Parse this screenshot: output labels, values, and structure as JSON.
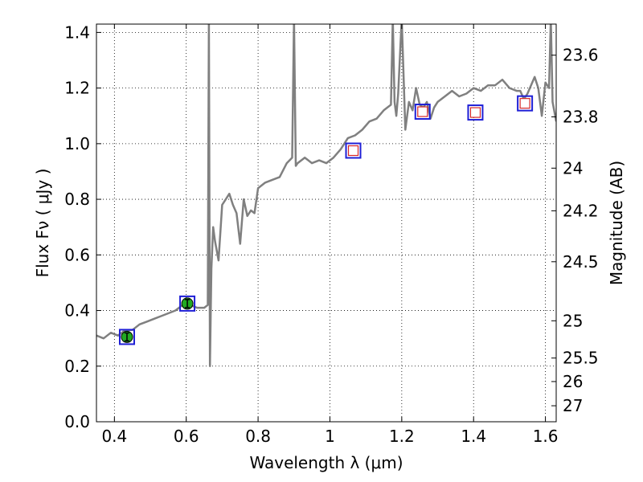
{
  "chart_data": {
    "type": "line",
    "xlabel": "Wavelength  λ (μm)",
    "ylabel": "Flux  Fν  ( μJy )",
    "y2label": "Magnitude (AB)",
    "xlim": [
      0.35,
      1.63
    ],
    "ylim": [
      0.0,
      1.43
    ],
    "grid": true,
    "x_ticks": [
      0.4,
      0.6,
      0.8,
      1.0,
      1.2,
      1.4,
      1.6
    ],
    "x_tick_labels": [
      "0.4",
      "0.6",
      "0.8",
      "1",
      "1.2",
      "1.4",
      "1.6"
    ],
    "y_ticks": [
      0.0,
      0.2,
      0.4,
      0.6,
      0.8,
      1.0,
      1.2,
      1.4
    ],
    "y_tick_labels": [
      "0.0",
      "0.2",
      "0.4",
      "0.6",
      "0.8",
      "1.0",
      "1.2",
      "1.4"
    ],
    "y2_ticks": [
      {
        "label": "23.6",
        "mag": 23.6
      },
      {
        "label": "23.8",
        "mag": 23.8
      },
      {
        "label": "24",
        "mag": 24.0
      },
      {
        "label": "24.2",
        "mag": 24.2
      },
      {
        "label": "24.5",
        "mag": 24.5
      },
      {
        "label": "25",
        "mag": 25.0
      },
      {
        "label": "25.5",
        "mag": 25.5
      },
      {
        "label": "26",
        "mag": 26.0
      },
      {
        "label": "27",
        "mag": 27.0
      }
    ],
    "series": [
      {
        "color": "#808080",
        "x": [
          0.35,
          0.37,
          0.39,
          0.41,
          0.43,
          0.45,
          0.47,
          0.49,
          0.51,
          0.53,
          0.55,
          0.57,
          0.59,
          0.61,
          0.63,
          0.65,
          0.66,
          0.663,
          0.666,
          0.67,
          0.675,
          0.68,
          0.69,
          0.7,
          0.71,
          0.72,
          0.73,
          0.74,
          0.75,
          0.76,
          0.77,
          0.78,
          0.79,
          0.8,
          0.82,
          0.84,
          0.86,
          0.88,
          0.895,
          0.9,
          0.905,
          0.91,
          0.93,
          0.95,
          0.97,
          0.99,
          1.01,
          1.03,
          1.05,
          1.07,
          1.09,
          1.11,
          1.13,
          1.15,
          1.17,
          1.175,
          1.18,
          1.185,
          1.19,
          1.2,
          1.21,
          1.22,
          1.23,
          1.24,
          1.25,
          1.26,
          1.27,
          1.28,
          1.29,
          1.3,
          1.32,
          1.34,
          1.36,
          1.38,
          1.4,
          1.42,
          1.44,
          1.46,
          1.48,
          1.5,
          1.52,
          1.53,
          1.54,
          1.55,
          1.56,
          1.57,
          1.58,
          1.59,
          1.6,
          1.61,
          1.615,
          1.62,
          1.63
        ],
        "y": [
          0.31,
          0.3,
          0.32,
          0.31,
          0.33,
          0.33,
          0.35,
          0.36,
          0.37,
          0.38,
          0.39,
          0.4,
          0.42,
          0.42,
          0.41,
          0.41,
          0.42,
          1.45,
          0.2,
          0.55,
          0.7,
          0.65,
          0.58,
          0.78,
          0.8,
          0.82,
          0.78,
          0.75,
          0.64,
          0.8,
          0.74,
          0.76,
          0.75,
          0.84,
          0.86,
          0.87,
          0.88,
          0.93,
          0.95,
          1.45,
          0.92,
          0.93,
          0.95,
          0.93,
          0.94,
          0.93,
          0.95,
          0.98,
          1.02,
          1.03,
          1.05,
          1.08,
          1.09,
          1.12,
          1.14,
          1.45,
          1.15,
          1.1,
          1.18,
          1.45,
          1.05,
          1.15,
          1.12,
          1.2,
          1.14,
          1.13,
          1.15,
          1.09,
          1.13,
          1.15,
          1.17,
          1.19,
          1.17,
          1.18,
          1.2,
          1.19,
          1.21,
          1.21,
          1.23,
          1.2,
          1.19,
          1.19,
          1.16,
          1.18,
          1.21,
          1.24,
          1.2,
          1.1,
          1.22,
          1.2,
          1.45,
          1.15,
          1.08
        ]
      },
      {
        "marker": "open-square",
        "color": "#d62728",
        "edge_color": "#1f1fd6",
        "x": [
          1.065,
          1.258,
          1.405,
          1.543
        ],
        "y": [
          0.975,
          1.115,
          1.112,
          1.145
        ]
      },
      {
        "marker": "filled-circle",
        "color": "#22aa22",
        "edge_color": "#1f1fd6",
        "x": [
          0.435,
          0.603
        ],
        "y": [
          0.305,
          0.425
        ]
      }
    ]
  }
}
